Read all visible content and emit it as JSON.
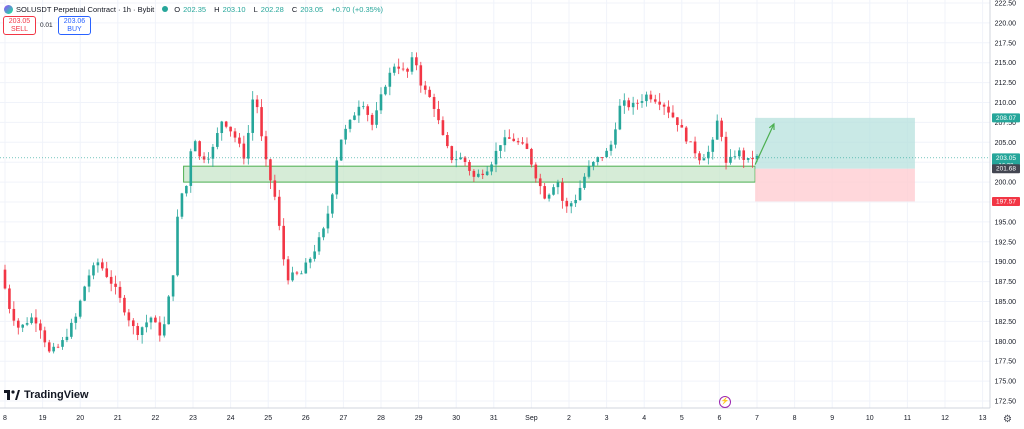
{
  "header": {
    "symbol": "SOLUSDT Perpetual Contract · 1h · Bybit",
    "ohlc": [
      {
        "key": "O",
        "value": "202.35"
      },
      {
        "key": "H",
        "value": "203.10"
      },
      {
        "key": "L",
        "value": "202.28"
      },
      {
        "key": "C",
        "value": "203.05"
      }
    ],
    "change": "+0.70 (+0.35%)"
  },
  "trade": {
    "sell_price": "203.05",
    "sell_label": "SELL",
    "spread": "0.01",
    "buy_price": "203.06",
    "buy_label": "BUY"
  },
  "branding": {
    "name": "TradingView"
  },
  "colors": {
    "up": "#26a69a",
    "down": "#f23645",
    "zone_fill": "#c8e6c9",
    "zone_stroke": "#4caf50",
    "target_fill": "#b2dfdb",
    "stop_fill": "#ffcdd2",
    "arrow": "#4caf50"
  },
  "chart_data": {
    "type": "candlestick",
    "title": "",
    "xlabel": "",
    "ylabel": "",
    "ylim": [
      172.5,
      222.5
    ],
    "y_ticks": [
      172.5,
      175.0,
      177.5,
      180.0,
      182.5,
      185.0,
      187.5,
      190.0,
      192.5,
      195.0,
      197.5,
      200.0,
      202.5,
      205.0,
      207.5,
      210.0,
      212.5,
      215.0,
      217.5,
      220.0,
      222.5
    ],
    "x_ticks": [
      "8",
      "19",
      "20",
      "21",
      "22",
      "23",
      "24",
      "25",
      "26",
      "27",
      "28",
      "29",
      "30",
      "31",
      "Sep",
      "2",
      "3",
      "4",
      "5",
      "6",
      "7",
      "8",
      "9",
      "10",
      "11",
      "12",
      "13"
    ],
    "grid": true,
    "price_path": [
      [
        0,
        189.0
      ],
      [
        0.25,
        184.0
      ],
      [
        0.5,
        181.5
      ],
      [
        0.8,
        183.0
      ],
      [
        1.0,
        182.5
      ],
      [
        1.3,
        178.5
      ],
      [
        1.6,
        179.5
      ],
      [
        2.0,
        183.0
      ],
      [
        2.3,
        188.0
      ],
      [
        2.6,
        190.0
      ],
      [
        3.0,
        187.0
      ],
      [
        3.3,
        184.0
      ],
      [
        3.6,
        181.0
      ],
      [
        4.0,
        183.0
      ],
      [
        4.3,
        180.5
      ],
      [
        4.6,
        189.0
      ],
      [
        4.75,
        198.0
      ],
      [
        5.0,
        200.0
      ],
      [
        5.1,
        207.0
      ],
      [
        5.3,
        203.0
      ],
      [
        5.6,
        203.5
      ],
      [
        5.9,
        208.0
      ],
      [
        6.2,
        206.0
      ],
      [
        6.5,
        203.0
      ],
      [
        6.75,
        212.0
      ],
      [
        7.0,
        203.5
      ],
      [
        7.3,
        198.0
      ],
      [
        7.6,
        188.0
      ],
      [
        8.0,
        188.5
      ],
      [
        8.3,
        191.0
      ],
      [
        8.6,
        194.0
      ],
      [
        8.8,
        198.0
      ],
      [
        9.0,
        205.0
      ],
      [
        9.3,
        207.5
      ],
      [
        9.6,
        210.5
      ],
      [
        9.9,
        207.0
      ],
      [
        10.2,
        212.0
      ],
      [
        10.5,
        215.0
      ],
      [
        10.8,
        213.5
      ],
      [
        11.0,
        216.0
      ],
      [
        11.2,
        212.0
      ],
      [
        11.5,
        210.0
      ],
      [
        11.8,
        205.0
      ],
      [
        12.0,
        203.0
      ],
      [
        12.3,
        203.0
      ],
      [
        12.6,
        200.5
      ],
      [
        13.0,
        202.0
      ],
      [
        13.3,
        205.0
      ],
      [
        13.6,
        205.5
      ],
      [
        14.0,
        204.0
      ],
      [
        14.3,
        200.0
      ],
      [
        14.5,
        198.0
      ],
      [
        14.8,
        200.5
      ],
      [
        15.0,
        196.5
      ],
      [
        15.3,
        198.0
      ],
      [
        15.6,
        201.5
      ],
      [
        15.9,
        203.0
      ],
      [
        16.2,
        204.0
      ],
      [
        16.5,
        210.0
      ],
      [
        16.8,
        209.5
      ],
      [
        17.2,
        211.0
      ],
      [
        17.6,
        210.0
      ],
      [
        18.0,
        207.5
      ],
      [
        18.3,
        205.0
      ],
      [
        18.6,
        203.0
      ],
      [
        18.9,
        204.0
      ],
      [
        19.1,
        208.5
      ],
      [
        19.3,
        202.0
      ],
      [
        19.6,
        204.0
      ],
      [
        19.85,
        202.5
      ],
      [
        20.0,
        203.05
      ]
    ],
    "support_zone": {
      "x_start": 4.75,
      "x_end": 19.95,
      "y_low": 200.0,
      "y_high": 202.0
    },
    "position": {
      "x_start": 19.95,
      "x_end": 24.2,
      "target": 208.07,
      "entry": 201.68,
      "stop": 197.57
    },
    "arrow": {
      "from": [
        19.95,
        202.2
      ],
      "to": [
        20.45,
        207.3
      ]
    },
    "price_labels": [
      {
        "value": 208.07,
        "text": "208.07",
        "color": "#26a69a"
      },
      {
        "value": 203.05,
        "text": "203.05",
        "sub": "16:38",
        "color": "#26a69a"
      },
      {
        "value": 201.68,
        "text": "201.68",
        "color": "#434651"
      },
      {
        "value": 197.57,
        "text": "197.57",
        "color": "#f23645"
      }
    ],
    "current_price": 203.05
  }
}
